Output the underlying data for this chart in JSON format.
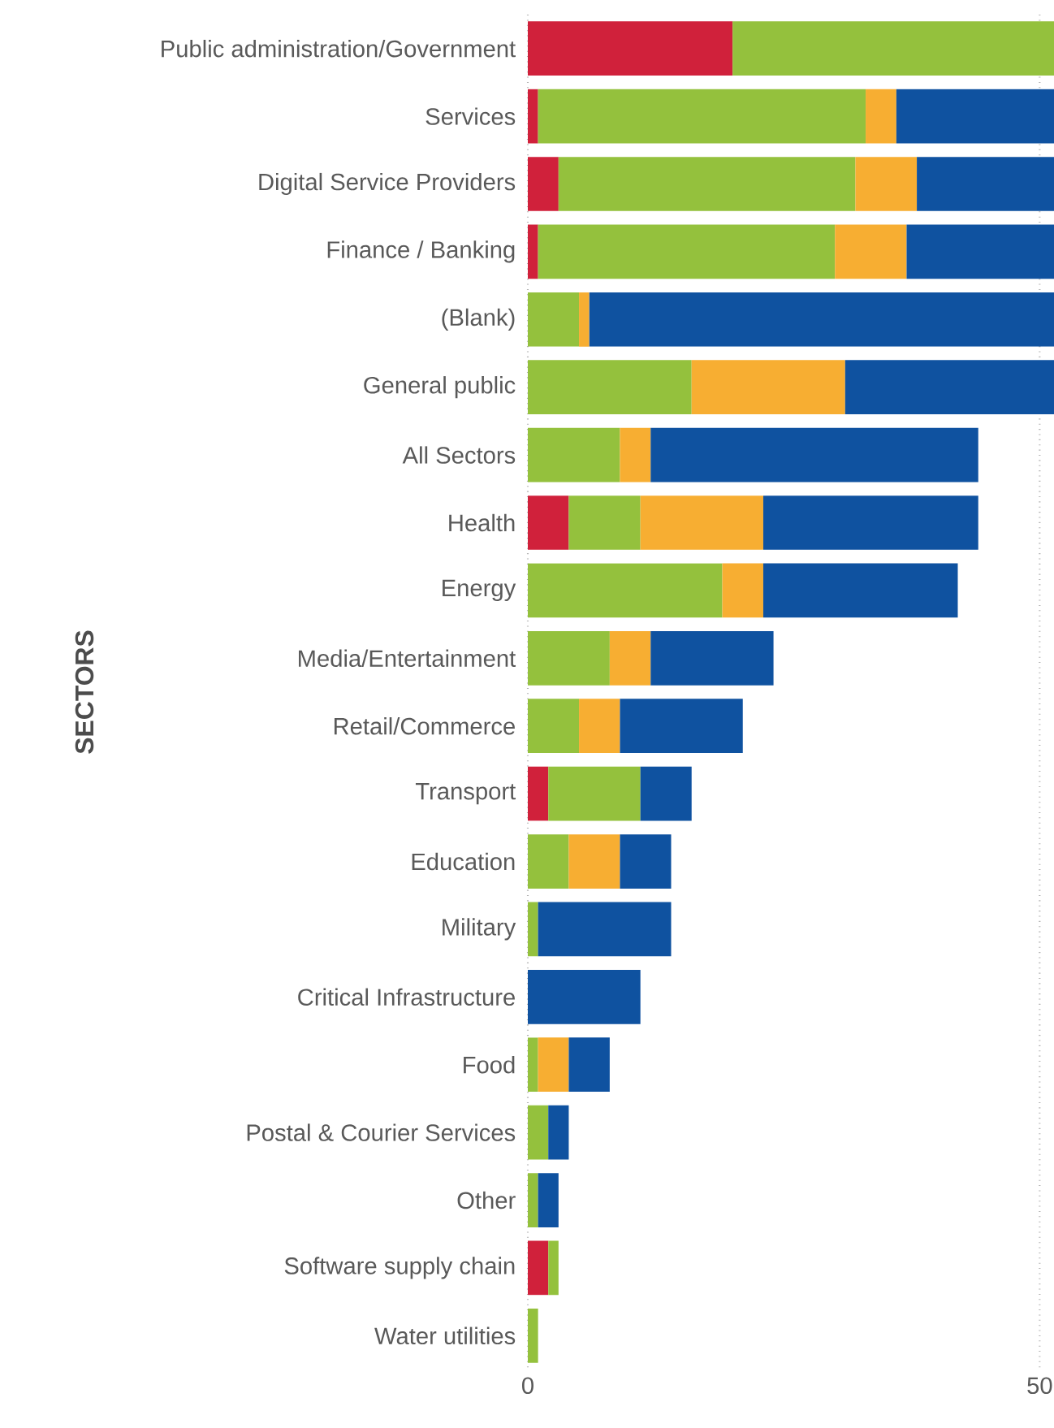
{
  "chart_data": {
    "type": "bar",
    "orientation": "horizontal",
    "stacked": true,
    "ylabel": "SECTORS",
    "categories": [
      "Public administration/Government",
      "Services",
      "Digital Service Providers",
      "Finance / Banking",
      "(Blank)",
      "General public",
      "All Sectors",
      "Health",
      "Energy",
      "Media/Entertainment",
      "Retail/Commerce",
      "Transport",
      "Education",
      "Military",
      "Critical Infrastructure",
      "Food",
      "Postal & Courier Services",
      "Other",
      "Software supply chain",
      "Water utilities"
    ],
    "series": [
      {
        "color": "#d0213b",
        "values": [
          20,
          1,
          3,
          1,
          null,
          null,
          null,
          4,
          null,
          null,
          null,
          2,
          null,
          null,
          null,
          null,
          null,
          null,
          2,
          null
        ]
      },
      {
        "color": "#94c13d",
        "values": [
          31.4,
          32,
          29,
          29,
          5,
          16,
          9,
          7,
          19,
          8,
          5,
          9,
          4,
          1,
          null,
          1,
          2,
          1,
          1,
          1
        ]
      },
      {
        "color": "#f7ae32",
        "values": [
          null,
          3,
          6,
          7,
          1,
          15,
          3,
          12,
          4,
          4,
          4,
          null,
          5,
          null,
          null,
          3,
          null,
          null,
          null,
          null
        ]
      },
      {
        "color": "#0f52a0",
        "values": [
          null,
          15.4,
          13.4,
          14.4,
          45.4,
          20.4,
          32,
          21,
          19,
          12,
          12,
          5,
          5,
          13,
          11,
          4,
          2,
          2,
          null,
          null
        ]
      }
    ],
    "xlim": [
      0,
      51.4
    ],
    "xticks": [
      0,
      50
    ],
    "grid": "x"
  }
}
